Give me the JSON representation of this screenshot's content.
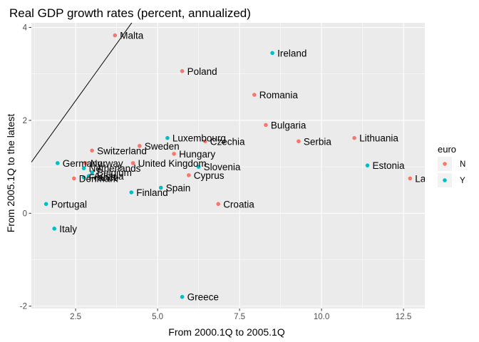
{
  "chart_data": {
    "type": "scatter",
    "title": "Real GDP growth rates (percent, annualized)",
    "xlabel": "From 2000.1Q to 2005.1Q",
    "ylabel": "From 2005.1Q to the latest",
    "xlim": [
      1.15,
      13.15
    ],
    "ylim": [
      -2.05,
      4.1
    ],
    "xticks": [
      2.5,
      5.0,
      7.5,
      10.0,
      12.5
    ],
    "xtick_labels": [
      "2.5",
      "5.0",
      "7.5",
      "10.0",
      "12.5"
    ],
    "yticks": [
      -2,
      0,
      2,
      4
    ],
    "ytick_labels": [
      "-2",
      "0",
      "2",
      "4"
    ],
    "grid": true,
    "reference_line": {
      "intercept": 1.1,
      "slope": 0.98
    },
    "legend": {
      "title": "euro",
      "position": "right",
      "entries": [
        {
          "key": "N",
          "color": "#F8766D"
        },
        {
          "key": "Y",
          "color": "#00BFC4"
        }
      ]
    },
    "points": [
      {
        "label": "Malta",
        "x": 3.7,
        "y": 3.83,
        "euro": "N"
      },
      {
        "label": "Ireland",
        "x": 8.5,
        "y": 3.45,
        "euro": "Y"
      },
      {
        "label": "Poland",
        "x": 5.75,
        "y": 3.06,
        "euro": "N"
      },
      {
        "label": "Romania",
        "x": 7.95,
        "y": 2.55,
        "euro": "N"
      },
      {
        "label": "Bulgaria",
        "x": 8.3,
        "y": 1.9,
        "euro": "N"
      },
      {
        "label": "Lithuania",
        "x": 11.0,
        "y": 1.62,
        "euro": "N"
      },
      {
        "label": "Serbia",
        "x": 9.3,
        "y": 1.55,
        "euro": "N"
      },
      {
        "label": "Luxembourg",
        "x": 5.3,
        "y": 1.62,
        "euro": "Y"
      },
      {
        "label": "Czechia",
        "x": 6.45,
        "y": 1.55,
        "euro": "N"
      },
      {
        "label": "Sweden",
        "x": 4.45,
        "y": 1.45,
        "euro": "N"
      },
      {
        "label": "Switzerland",
        "x": 3.0,
        "y": 1.35,
        "euro": "N"
      },
      {
        "label": "Hungary",
        "x": 5.5,
        "y": 1.28,
        "euro": "N"
      },
      {
        "label": "Germany",
        "x": 1.95,
        "y": 1.08,
        "euro": "Y"
      },
      {
        "label": "Norway",
        "x": 2.8,
        "y": 1.08,
        "euro": "N"
      },
      {
        "label": "United Kingdom",
        "x": 4.25,
        "y": 1.08,
        "euro": "N"
      },
      {
        "label": "Slovenia",
        "x": 6.25,
        "y": 1.0,
        "euro": "Y"
      },
      {
        "label": "Estonia",
        "x": 11.4,
        "y": 1.03,
        "euro": "Y"
      },
      {
        "label": "Netherlands",
        "x": 2.75,
        "y": 0.97,
        "euro": "Y"
      },
      {
        "label": "Belgium",
        "x": 3.0,
        "y": 0.88,
        "euro": "Y"
      },
      {
        "label": "Austria",
        "x": 2.9,
        "y": 0.8,
        "euro": "Y"
      },
      {
        "label": "Cyprus",
        "x": 5.95,
        "y": 0.82,
        "euro": "N"
      },
      {
        "label": "France",
        "x": 2.75,
        "y": 0.77,
        "euro": "Y"
      },
      {
        "label": "Denmark",
        "x": 2.45,
        "y": 0.75,
        "euro": "N"
      },
      {
        "label": "Latvia",
        "x": 12.7,
        "y": 0.75,
        "euro": "N",
        "display": "Lat"
      },
      {
        "label": "Spain",
        "x": 5.1,
        "y": 0.55,
        "euro": "Y"
      },
      {
        "label": "Finland",
        "x": 4.2,
        "y": 0.45,
        "euro": "Y"
      },
      {
        "label": "Portugal",
        "x": 1.6,
        "y": 0.2,
        "euro": "Y"
      },
      {
        "label": "Croatia",
        "x": 6.85,
        "y": 0.2,
        "euro": "N"
      },
      {
        "label": "Italy",
        "x": 1.85,
        "y": -0.33,
        "euro": "Y"
      },
      {
        "label": "Greece",
        "x": 5.75,
        "y": -1.8,
        "euro": "Y"
      }
    ]
  }
}
